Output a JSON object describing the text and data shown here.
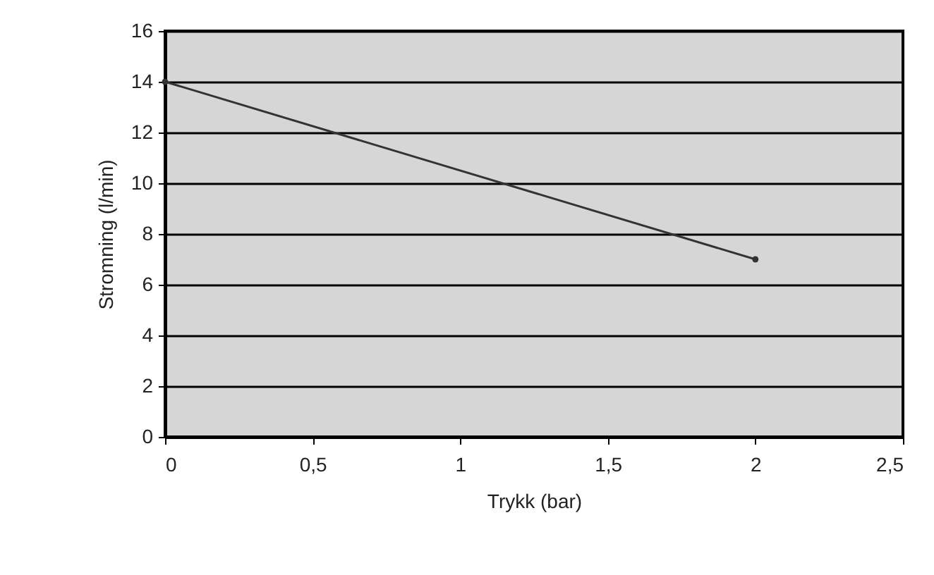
{
  "chart_data": {
    "type": "line",
    "xlabel": "Trykk (bar)",
    "ylabel": "Stromning (l/min)",
    "x": [
      0,
      2
    ],
    "series": [
      {
        "color": "#333333",
        "values": [
          14,
          7
        ]
      }
    ],
    "xlim": [
      0,
      2.5
    ],
    "xticks": [
      0,
      {
        "value": 0.5,
        "label": "0,5"
      },
      1,
      {
        "value": 1.5,
        "label": "1,5"
      },
      2,
      {
        "value": 2.5,
        "label": "2,5"
      }
    ],
    "ylim": [
      0,
      16
    ],
    "yticks": [
      0,
      2,
      4,
      6,
      8,
      10,
      12,
      14,
      16
    ],
    "grid": "y",
    "marker": "circle",
    "line_style": "solid"
  }
}
